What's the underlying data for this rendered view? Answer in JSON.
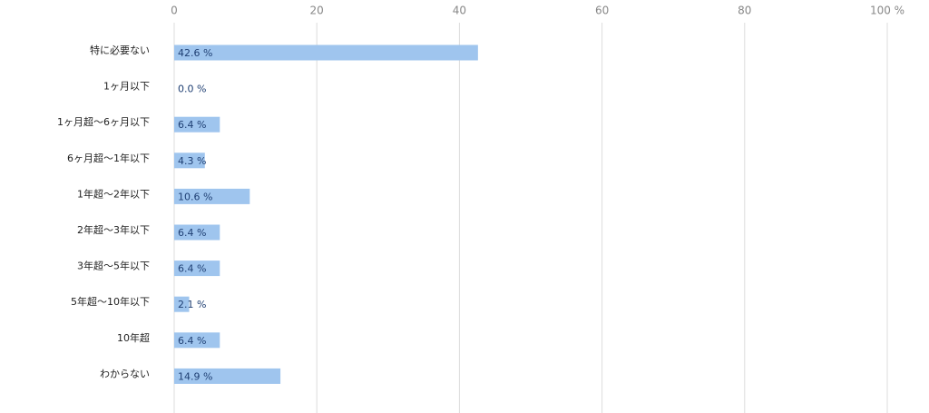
{
  "chart_data": {
    "type": "bar",
    "orientation": "horizontal",
    "categories": [
      "特に必要ない",
      "1ヶ月以下",
      "1ヶ月超〜6ヶ月以下",
      "6ヶ月超〜1年以下",
      "1年超〜2年以下",
      "2年超〜3年以下",
      "3年超〜5年以下",
      "5年超〜10年以下",
      "10年超",
      "わからない"
    ],
    "values": [
      42.6,
      0.0,
      6.4,
      4.3,
      10.6,
      6.4,
      6.4,
      2.1,
      6.4,
      14.9
    ],
    "value_labels": [
      "42.6 %",
      "0.0 %",
      "6.4 %",
      "4.3 %",
      "10.6 %",
      "6.4 %",
      "6.4 %",
      "2.1 %",
      "6.4 %",
      "14.9 %"
    ],
    "color": "#9fc5ee",
    "xlim": [
      0,
      100
    ],
    "xticks": [
      0,
      20,
      40,
      60,
      80,
      {
        "value": 100,
        "label": "100 %"
      }
    ],
    "grid": true
  }
}
